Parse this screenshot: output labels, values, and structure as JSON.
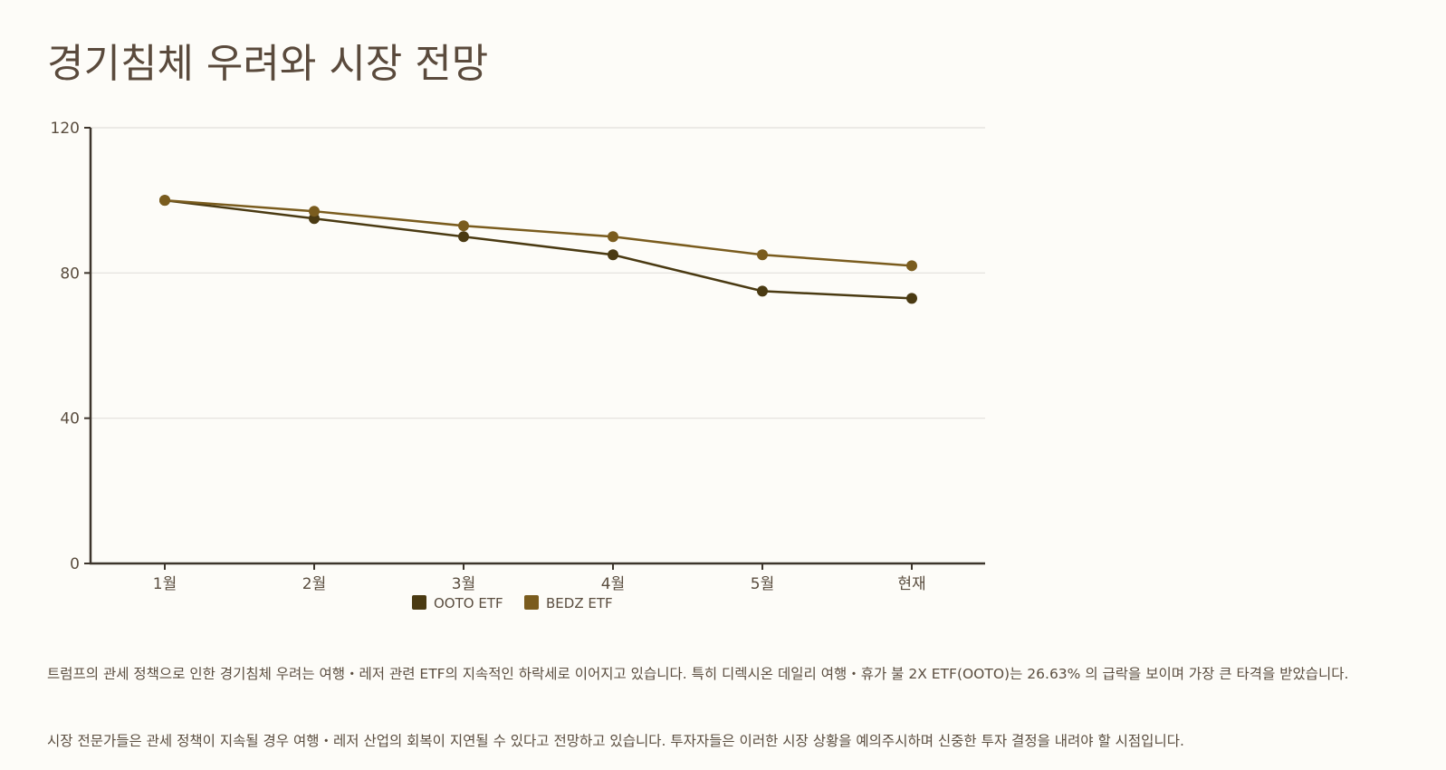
{
  "title": "경기침체 우려와 시장 전망",
  "chart_data": {
    "type": "line",
    "categories": [
      "1월",
      "2월",
      "3월",
      "4월",
      "5월",
      "현재"
    ],
    "series": [
      {
        "name": "OOTO ETF",
        "color": "#4a3a12",
        "values": [
          100,
          95,
          90,
          85,
          75,
          73
        ]
      },
      {
        "name": "BEDZ ETF",
        "color": "#7a5c1e",
        "values": [
          100,
          97,
          93,
          90,
          85,
          82
        ]
      }
    ],
    "ylim": [
      0,
      120
    ],
    "yticks": [
      0,
      40,
      80,
      120
    ],
    "grid": true,
    "legend": "bottom-center"
  },
  "paragraphs": [
    "트럼프의 관세 정책으로 인한 경기침체 우려는 여행・레저 관련 ETF의 지속적인 하락세로 이어지고 있습니다. 특히 디렉시온 데일리 여행・휴가 불 2X ETF(OOTO)는 26.63% 의 급락을 보이며 가장 큰 타격을 받았습니다.",
    "시장 전문가들은 관세 정책이 지속될 경우 여행・레저 산업의 회복이 지연될 수 있다고 전망하고 있습니다. 투자자들은 이러한 시장 상황을 예의주시하며 신중한 투자 결정을 내려야 할 시점입니다."
  ]
}
